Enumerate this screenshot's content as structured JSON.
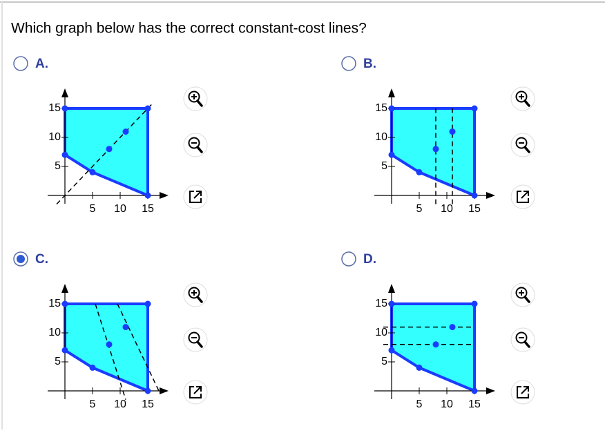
{
  "question": "Which graph below has the correct constant-cost lines?",
  "options": [
    {
      "letter": "A.",
      "selected": false,
      "graph": {
        "xticks": [
          5,
          10,
          15
        ],
        "yticks": [
          5,
          10,
          15
        ],
        "region": {
          "x": [
            0,
            0,
            15,
            15,
            5
          ],
          "y": [
            7,
            15,
            15,
            0,
            4
          ]
        },
        "points": {
          "x": [
            8,
            11
          ],
          "y": [
            8,
            11
          ]
        },
        "dashed": [
          {
            "x": [
              -1.5,
              16
            ],
            "y": [
              -1.5,
              16
            ]
          }
        ]
      }
    },
    {
      "letter": "B.",
      "selected": false,
      "graph": {
        "xticks": [
          5,
          10,
          15
        ],
        "yticks": [
          5,
          10,
          15
        ],
        "region": {
          "x": [
            0,
            0,
            15,
            15,
            5
          ],
          "y": [
            7,
            15,
            15,
            0,
            4
          ]
        },
        "points": {
          "x": [
            8,
            11
          ],
          "y": [
            8,
            11
          ]
        },
        "dashed": [
          {
            "x": [
              8,
              8
            ],
            "y": [
              -1.5,
              15
            ]
          },
          {
            "x": [
              11,
              11
            ],
            "y": [
              -1.5,
              15
            ]
          }
        ]
      }
    },
    {
      "letter": "C.",
      "selected": true,
      "graph": {
        "xticks": [
          5,
          10,
          15
        ],
        "yticks": [
          5,
          10,
          15
        ],
        "region": {
          "x": [
            0,
            0,
            15,
            15,
            5
          ],
          "y": [
            7,
            15,
            15,
            0,
            4
          ]
        },
        "points": {
          "x": [
            8,
            11
          ],
          "y": [
            8,
            11
          ]
        },
        "dashed": [
          {
            "x": [
              5.5,
              11
            ],
            "y": [
              15,
              -1.5
            ]
          },
          {
            "x": [
              9.5,
              17
            ],
            "y": [
              15,
              0
            ]
          }
        ]
      }
    },
    {
      "letter": "D.",
      "selected": false,
      "graph": {
        "xticks": [
          5,
          10,
          15
        ],
        "yticks": [
          5,
          10,
          15
        ],
        "region": {
          "x": [
            0,
            0,
            15,
            15,
            5
          ],
          "y": [
            7,
            15,
            15,
            0,
            4
          ]
        },
        "points": {
          "x": [
            8,
            11
          ],
          "y": [
            8,
            11
          ]
        },
        "dashed": [
          {
            "x": [
              -1.5,
              15
            ],
            "y": [
              8,
              8
            ]
          },
          {
            "x": [
              -1.5,
              15
            ],
            "y": [
              11,
              11
            ]
          }
        ]
      }
    }
  ]
}
